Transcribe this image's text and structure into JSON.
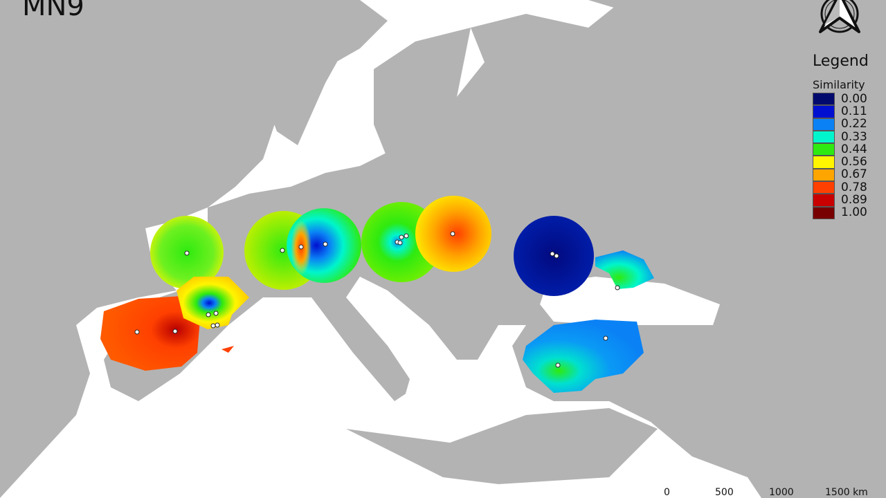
{
  "title": "MN9",
  "legend": {
    "title": "Legend",
    "subtitle": "Similarity",
    "items": [
      {
        "label": "0.00",
        "color": "#020a6e"
      },
      {
        "label": "0.11",
        "color": "#0010d0"
      },
      {
        "label": "0.22",
        "color": "#0a82f5"
      },
      {
        "label": "0.33",
        "color": "#00f5cc"
      },
      {
        "label": "0.44",
        "color": "#2eea10"
      },
      {
        "label": "0.56",
        "color": "#fff500"
      },
      {
        "label": "0.67",
        "color": "#ffa500"
      },
      {
        "label": "0.78",
        "color": "#ff4000"
      },
      {
        "label": "0.89",
        "color": "#c80000"
      },
      {
        "label": "1.00",
        "color": "#780000"
      }
    ]
  },
  "scale_bar": {
    "labels": [
      "0",
      "500",
      "1000",
      "1500 km"
    ]
  },
  "north_arrow": "north-arrow-icon",
  "colors": {
    "land": "#b3b3b3",
    "sea": "#ffffff"
  }
}
